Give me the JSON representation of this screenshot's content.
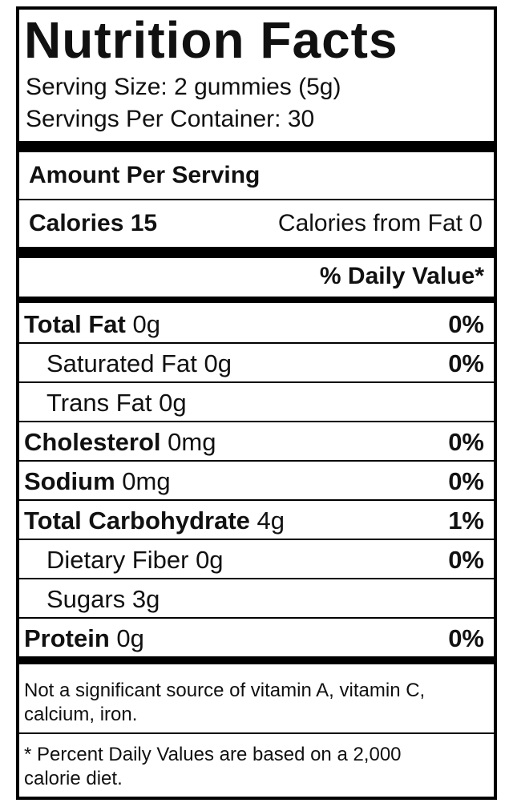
{
  "header": {
    "title": "Nutrition Facts",
    "serving_size": "Serving Size: 2 gummies (5g)",
    "servings_per_container": "Servings Per Container: 30"
  },
  "amount_per_serving": "Amount Per Serving",
  "calories": "Calories 15",
  "calories_from_fat": "Calories from Fat 0",
  "daily_value_header": "% Daily Value*",
  "rows": [
    {
      "label": "Total Fat",
      "amount": "0g",
      "dv": "0%",
      "indent": false
    },
    {
      "label": "Saturated Fat",
      "amount": "0g",
      "dv": "0%",
      "indent": true
    },
    {
      "label": "Trans Fat",
      "amount": "0g",
      "indent": true
    },
    {
      "label": "Cholesterol",
      "amount": "0mg",
      "dv": "0%",
      "indent": false
    },
    {
      "label": "Sodium",
      "amount": "0mg",
      "dv": "0%",
      "indent": false
    },
    {
      "label": "Total Carbohydrate",
      "amount": "4g",
      "dv": "1%",
      "indent": false
    },
    {
      "label": "Dietary Fiber",
      "amount": "0g",
      "dv": "0%",
      "indent": true
    },
    {
      "label": "Sugars",
      "amount": "3g",
      "indent": true
    },
    {
      "label": "Protein",
      "amount": "0g",
      "dv": "0%",
      "indent": false
    }
  ],
  "note": [
    "Not a significant source of vitamin A, vitamin C,",
    "calcium, iron."
  ],
  "footnote": [
    "* Percent Daily Values are based on a 2,000",
    "calorie diet."
  ]
}
